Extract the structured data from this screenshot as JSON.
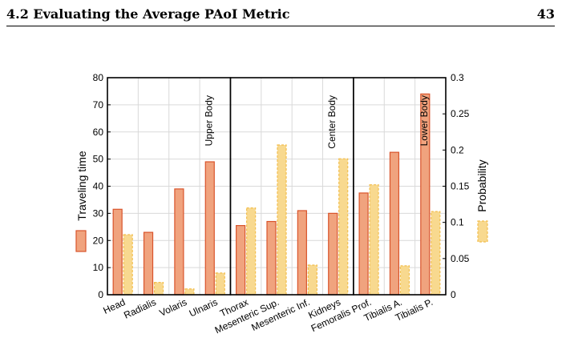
{
  "header": {
    "section_title": "4.2 Evaluating the Average PAoI Metric",
    "page_number": "43"
  },
  "chart_data": {
    "type": "bar",
    "categories": [
      "Head",
      "Radialis",
      "Volaris",
      "Ulnaris",
      "Thorax",
      "Mesenteric Sup.",
      "Mesenteric Inf.",
      "Kidneys",
      "Femoralis Prof.",
      "Tibialis A.",
      "Tibialis P."
    ],
    "series": [
      {
        "name": "Traveling time",
        "axis": "left",
        "values": [
          31.5,
          23,
          39,
          49,
          25.5,
          27,
          31,
          30,
          37.5,
          52.5,
          74
        ],
        "color": "#f0a37e",
        "stroke": "#d9542b"
      },
      {
        "name": "Probability",
        "axis": "right",
        "values": [
          0.083,
          0.017,
          0.008,
          0.03,
          0.12,
          0.207,
          0.041,
          0.188,
          0.152,
          0.04,
          0.115
        ],
        "color": "#f8d98f",
        "stroke": "#f2be4e"
      }
    ],
    "ylabel": "Traveling time",
    "ylim": [
      0,
      80
    ],
    "y_ticks": [
      0,
      10,
      20,
      30,
      40,
      50,
      60,
      70,
      80
    ],
    "ylabel_right": "Probability",
    "ylim_right": [
      0,
      0.3
    ],
    "y_ticks_right": [
      "0",
      "0.05",
      "0.1",
      "0.15",
      "0.2",
      "0.25",
      "0.3"
    ],
    "regions": [
      {
        "label": "Upper Body",
        "from": 0,
        "to": 3
      },
      {
        "label": "Center Body",
        "from": 4,
        "to": 7
      },
      {
        "label": "Lower Body",
        "from": 8,
        "to": 10
      }
    ],
    "grid": true,
    "legend_placement": "alongside axis labels"
  }
}
